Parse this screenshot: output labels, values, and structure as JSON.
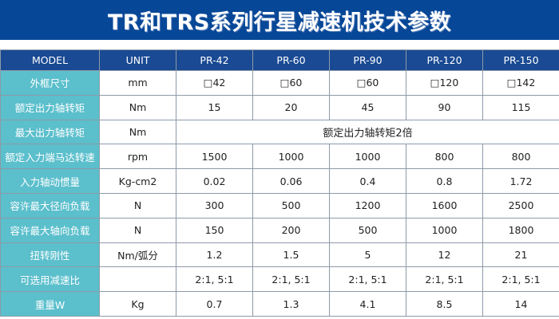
{
  "title": "TR和TRS系列行星减速机技术参数",
  "colors": {
    "banner": "#064797",
    "header": "#1a4a93",
    "label_column": "#5bbfcc"
  },
  "table": {
    "headers": [
      "MODEL",
      "UNIT",
      "PR-42",
      "PR-60",
      "PR-90",
      "PR-120",
      "PR-150"
    ],
    "rows": [
      {
        "label": "外框尺寸",
        "unit": "mm",
        "values": [
          "□42",
          "□60",
          "□60",
          "□120",
          "□142"
        ]
      },
      {
        "label": "额定出力轴转矩",
        "unit": "Nm",
        "values": [
          "15",
          "20",
          "45",
          "90",
          "115"
        ]
      },
      {
        "label": "最大出力轴转矩",
        "unit": "Nm",
        "span": "额定出力轴转矩2倍"
      },
      {
        "label": "额定入力端马达转速",
        "unit": "rpm",
        "values": [
          "1500",
          "1000",
          "1000",
          "800",
          "800"
        ]
      },
      {
        "label": "入力轴动惯量",
        "unit": "Kg-cm2",
        "values": [
          "0.02",
          "0.06",
          "0.4",
          "0.8",
          "1.72"
        ]
      },
      {
        "label": "容许最大径向负载",
        "unit": "N",
        "values": [
          "300",
          "500",
          "1200",
          "1600",
          "2500"
        ]
      },
      {
        "label": "容许最大轴向负载",
        "unit": "N",
        "values": [
          "150",
          "200",
          "500",
          "1000",
          "1800"
        ]
      },
      {
        "label": "扭转刚性",
        "unit": "Nm/弧分",
        "values": [
          "1.2",
          "1.5",
          "5",
          "12",
          "21"
        ]
      },
      {
        "label": "可选用减速比",
        "unit": "",
        "values": [
          "2:1, 5:1",
          "2:1, 5:1",
          "2:1, 5:1",
          "2:1, 5:1",
          "2:1, 5:1"
        ]
      },
      {
        "label": "重量W",
        "unit": "Kg",
        "values": [
          "0.7",
          "1.3",
          "4.1",
          "8.5",
          "14"
        ]
      }
    ]
  }
}
